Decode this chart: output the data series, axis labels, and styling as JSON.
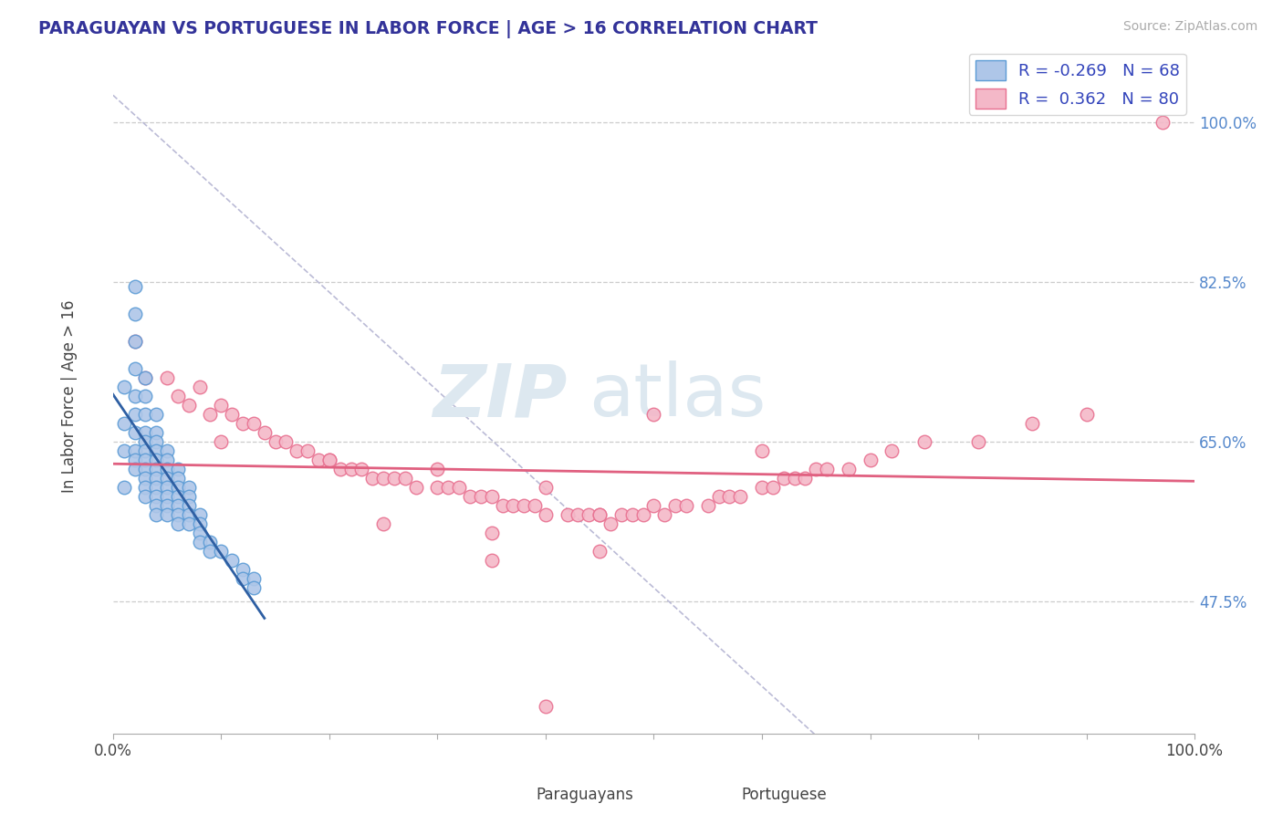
{
  "title": "PARAGUAYAN VS PORTUGUESE IN LABOR FORCE | AGE > 16 CORRELATION CHART",
  "source_text": "Source: ZipAtlas.com",
  "ylabel": "In Labor Force | Age > 16",
  "y_tick_labels_right": [
    "47.5%",
    "65.0%",
    "82.5%",
    "100.0%"
  ],
  "y_tick_values_right": [
    0.475,
    0.65,
    0.825,
    1.0
  ],
  "xlim": [
    0.0,
    1.0
  ],
  "ylim": [
    0.33,
    1.07
  ],
  "legend_label_blue": "R = -0.269   N = 68",
  "legend_label_pink": "R =  0.362   N = 80",
  "legend_blue_face": "#aec6e8",
  "legend_pink_face": "#f4b8c8",
  "paraguayan_face_color": "#aec6e8",
  "paraguayan_edge_color": "#5b9bd5",
  "portuguese_face_color": "#f4b8c8",
  "portuguese_edge_color": "#e87090",
  "trend_blue_color": "#2e5fa3",
  "trend_pink_color": "#e06080",
  "diagonal_color": "#aaaacc",
  "background_color": "#ffffff",
  "watermark_color": "#dde8f0",
  "r_paraguayan": -0.269,
  "n_paraguayan": 68,
  "r_portuguese": 0.362,
  "n_portuguese": 80,
  "paraguayan_x": [
    0.01,
    0.01,
    0.01,
    0.01,
    0.02,
    0.02,
    0.02,
    0.02,
    0.02,
    0.02,
    0.02,
    0.02,
    0.02,
    0.02,
    0.03,
    0.03,
    0.03,
    0.03,
    0.03,
    0.03,
    0.03,
    0.03,
    0.03,
    0.03,
    0.03,
    0.04,
    0.04,
    0.04,
    0.04,
    0.04,
    0.04,
    0.04,
    0.04,
    0.04,
    0.04,
    0.04,
    0.05,
    0.05,
    0.05,
    0.05,
    0.05,
    0.05,
    0.05,
    0.05,
    0.06,
    0.06,
    0.06,
    0.06,
    0.06,
    0.06,
    0.06,
    0.07,
    0.07,
    0.07,
    0.07,
    0.07,
    0.08,
    0.08,
    0.08,
    0.08,
    0.09,
    0.09,
    0.1,
    0.11,
    0.12,
    0.12,
    0.13,
    0.13
  ],
  "paraguayan_y": [
    0.71,
    0.67,
    0.64,
    0.6,
    0.82,
    0.79,
    0.76,
    0.73,
    0.7,
    0.68,
    0.66,
    0.64,
    0.63,
    0.62,
    0.72,
    0.7,
    0.68,
    0.66,
    0.65,
    0.64,
    0.63,
    0.62,
    0.61,
    0.6,
    0.59,
    0.68,
    0.66,
    0.65,
    0.64,
    0.63,
    0.62,
    0.61,
    0.6,
    0.59,
    0.58,
    0.57,
    0.64,
    0.63,
    0.62,
    0.61,
    0.6,
    0.59,
    0.58,
    0.57,
    0.62,
    0.61,
    0.6,
    0.59,
    0.58,
    0.57,
    0.56,
    0.6,
    0.59,
    0.58,
    0.57,
    0.56,
    0.57,
    0.56,
    0.55,
    0.54,
    0.54,
    0.53,
    0.53,
    0.52,
    0.51,
    0.5,
    0.5,
    0.49
  ],
  "portuguese_x": [
    0.02,
    0.03,
    0.05,
    0.06,
    0.07,
    0.08,
    0.09,
    0.1,
    0.11,
    0.12,
    0.13,
    0.14,
    0.15,
    0.16,
    0.17,
    0.18,
    0.19,
    0.2,
    0.21,
    0.22,
    0.23,
    0.24,
    0.25,
    0.26,
    0.27,
    0.28,
    0.3,
    0.31,
    0.32,
    0.33,
    0.34,
    0.35,
    0.36,
    0.37,
    0.38,
    0.39,
    0.4,
    0.42,
    0.43,
    0.44,
    0.45,
    0.46,
    0.47,
    0.48,
    0.49,
    0.5,
    0.51,
    0.52,
    0.53,
    0.55,
    0.56,
    0.57,
    0.58,
    0.6,
    0.61,
    0.62,
    0.63,
    0.64,
    0.65,
    0.66,
    0.68,
    0.7,
    0.72,
    0.75,
    0.8,
    0.85,
    0.9,
    0.1,
    0.2,
    0.3,
    0.4,
    0.5,
    0.6,
    0.35,
    0.45,
    0.25,
    0.35,
    0.45,
    0.97,
    0.4
  ],
  "portuguese_y": [
    0.76,
    0.72,
    0.72,
    0.7,
    0.69,
    0.71,
    0.68,
    0.69,
    0.68,
    0.67,
    0.67,
    0.66,
    0.65,
    0.65,
    0.64,
    0.64,
    0.63,
    0.63,
    0.62,
    0.62,
    0.62,
    0.61,
    0.61,
    0.61,
    0.61,
    0.6,
    0.6,
    0.6,
    0.6,
    0.59,
    0.59,
    0.59,
    0.58,
    0.58,
    0.58,
    0.58,
    0.57,
    0.57,
    0.57,
    0.57,
    0.57,
    0.56,
    0.57,
    0.57,
    0.57,
    0.58,
    0.57,
    0.58,
    0.58,
    0.58,
    0.59,
    0.59,
    0.59,
    0.6,
    0.6,
    0.61,
    0.61,
    0.61,
    0.62,
    0.62,
    0.62,
    0.63,
    0.64,
    0.65,
    0.65,
    0.67,
    0.68,
    0.65,
    0.63,
    0.62,
    0.6,
    0.68,
    0.64,
    0.52,
    0.53,
    0.56,
    0.55,
    0.57,
    1.0,
    0.36
  ]
}
